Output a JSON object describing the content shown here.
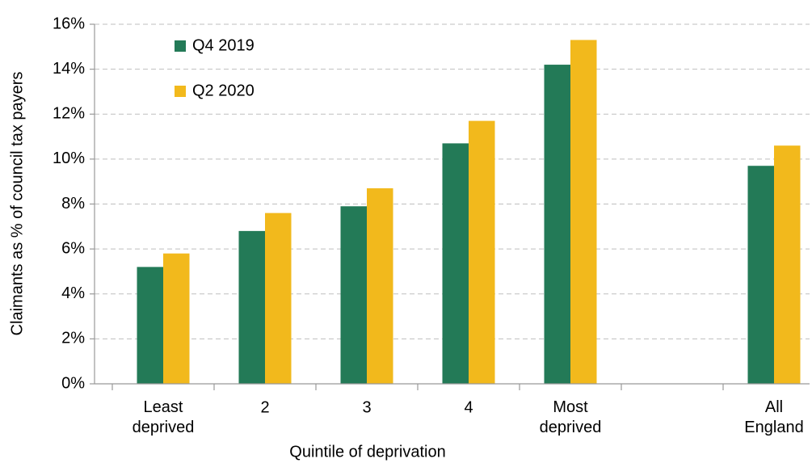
{
  "chart_data": {
    "type": "bar",
    "x_label": "Quintile of deprivation",
    "y_label": "Claimants as % of council tax payers",
    "categories": [
      "Least deprived",
      "2",
      "3",
      "4",
      "Most deprived",
      null,
      "All England"
    ],
    "series": [
      {
        "name": "Q4 2019",
        "color": "#237a57",
        "values": [
          5.2,
          6.8,
          7.9,
          10.7,
          14.2,
          null,
          9.7
        ]
      },
      {
        "name": "Q2 2020",
        "color": "#f2b91c",
        "values": [
          5.8,
          7.6,
          8.7,
          11.7,
          15.3,
          null,
          10.6
        ]
      }
    ],
    "ylim": [
      0,
      16
    ],
    "yticks": [
      {
        "value": 0,
        "label": "0%"
      },
      {
        "value": 2,
        "label": "2%"
      },
      {
        "value": 4,
        "label": "4%"
      },
      {
        "value": 6,
        "label": "6%"
      },
      {
        "value": 8,
        "label": "8%"
      },
      {
        "value": 10,
        "label": "10%"
      },
      {
        "value": 12,
        "label": "12%"
      },
      {
        "value": 14,
        "label": "14%"
      },
      {
        "value": 16,
        "label": "16%"
      }
    ],
    "grid": true,
    "legend": "top-left"
  }
}
